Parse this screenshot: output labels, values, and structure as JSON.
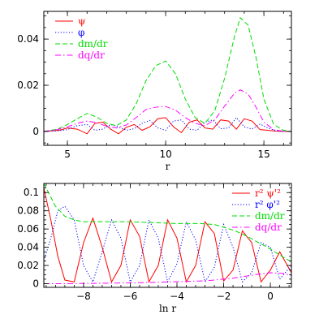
{
  "chart_data": [
    {
      "type": "line",
      "xlabel": "r",
      "ylabel": "",
      "xlim": [
        3.8,
        16.4
      ],
      "ylim": [
        -0.006,
        0.052
      ],
      "xticks": [
        5,
        10,
        15
      ],
      "yticks": [
        0,
        0.02,
        0.04
      ],
      "xtick_labels": [
        "5",
        "10",
        "15"
      ],
      "ytick_labels": [
        "0",
        "0.02",
        "0.04"
      ],
      "legend_position": "top-left",
      "series": [
        {
          "name": "ψ",
          "style": "solid",
          "color": "#ff0000",
          "x": [
            3.8,
            4.6,
            5.0,
            5.5,
            6.0,
            6.4,
            6.8,
            7.2,
            7.6,
            8.0,
            8.4,
            8.8,
            9.2,
            9.6,
            10.0,
            10.4,
            10.8,
            11.2,
            11.6,
            12.0,
            12.4,
            12.8,
            13.2,
            13.6,
            14.0,
            14.4,
            14.8,
            15.2,
            15.6,
            16.0,
            16.4
          ],
          "y": [
            0,
            0.0005,
            0.0015,
            0.001,
            -0.001,
            0.0035,
            0.004,
            0.001,
            -0.001,
            0.0018,
            0.003,
            0.0005,
            0.002,
            0.0055,
            0.006,
            0.002,
            -0.0005,
            0.004,
            0.005,
            0.0015,
            0.001,
            0.005,
            0.0045,
            0.001,
            0.0055,
            0.0045,
            0.0008,
            0.0005,
            0.0001,
            0,
            0
          ]
        },
        {
          "name": "φ",
          "style": "dotted",
          "color": "#0000ff",
          "x": [
            3.8,
            4.6,
            5.0,
            5.5,
            6.0,
            6.4,
            6.8,
            7.2,
            7.6,
            8.0,
            8.4,
            8.8,
            9.2,
            9.6,
            10.0,
            10.4,
            10.8,
            11.2,
            11.6,
            12.0,
            12.4,
            12.8,
            13.2,
            13.6,
            14.0,
            14.4,
            14.8,
            15.2,
            15.6,
            16.0,
            16.4
          ],
          "y": [
            0,
            0.0003,
            0.0008,
            0.0025,
            0.003,
            0.0005,
            0.001,
            0.003,
            0.002,
            0.0005,
            0.0012,
            0.0035,
            0.0048,
            0.0015,
            0.0005,
            0.0045,
            0.005,
            0.001,
            0.0005,
            0.004,
            0.005,
            0.0012,
            0.0015,
            0.006,
            0.002,
            0.001,
            0.0032,
            0.0015,
            0.0003,
            0,
            0
          ]
        },
        {
          "name": "dm/dr",
          "style": "dashed",
          "color": "#00dd00",
          "x": [
            3.8,
            4.5,
            5.0,
            5.5,
            6.0,
            6.5,
            7.0,
            7.5,
            8.0,
            8.5,
            9.0,
            9.5,
            10.0,
            10.5,
            11.0,
            11.5,
            12.0,
            12.5,
            13.0,
            13.5,
            13.8,
            14.2,
            14.6,
            15.0,
            15.5,
            16.0,
            16.4
          ],
          "y": [
            0,
            0.001,
            0.003,
            0.0055,
            0.0078,
            0.0062,
            0.0035,
            0.0025,
            0.005,
            0.012,
            0.022,
            0.0285,
            0.0305,
            0.025,
            0.014,
            0.006,
            0.0035,
            0.009,
            0.023,
            0.041,
            0.0492,
            0.046,
            0.032,
            0.014,
            0.003,
            0.0005,
            0
          ]
        },
        {
          "name": "dq/dr",
          "style": "dashdot",
          "color": "#ff00ff",
          "x": [
            3.8,
            4.5,
            5.0,
            5.5,
            6.0,
            6.5,
            7.0,
            7.5,
            8.0,
            8.5,
            9.0,
            9.5,
            10.0,
            10.5,
            11.0,
            11.5,
            12.0,
            12.5,
            13.0,
            13.5,
            13.8,
            14.2,
            14.6,
            15.0,
            15.5,
            16.0,
            16.4
          ],
          "y": [
            0,
            0.0008,
            0.002,
            0.0035,
            0.0045,
            0.0038,
            0.0022,
            0.0015,
            0.0028,
            0.006,
            0.0095,
            0.0105,
            0.0108,
            0.0092,
            0.006,
            0.0035,
            0.0025,
            0.005,
            0.011,
            0.0165,
            0.018,
            0.0162,
            0.0105,
            0.004,
            0.0008,
            0.0001,
            0
          ]
        }
      ]
    },
    {
      "type": "line",
      "xlabel": "ln r",
      "ylabel": "",
      "xlim": [
        -9.7,
        0.9
      ],
      "ylim": [
        -0.004,
        0.11
      ],
      "xticks": [
        -8,
        -6,
        -4,
        -2,
        0
      ],
      "yticks": [
        0,
        0.02,
        0.04,
        0.06,
        0.08,
        0.1
      ],
      "xtick_labels": [
        "−8",
        "−6",
        "−4",
        "−2",
        "0"
      ],
      "ytick_labels": [
        "0",
        "0.02",
        "0.04",
        "0.06",
        "0.08",
        "0.1"
      ],
      "legend_position": "top-right",
      "series": [
        {
          "name": "r² ψ'²",
          "style": "solid",
          "color": "#ff0000",
          "x": [
            -9.7,
            -9.4,
            -9.1,
            -8.8,
            -8.4,
            -8.0,
            -7.6,
            -7.2,
            -6.8,
            -6.4,
            -6.0,
            -5.6,
            -5.2,
            -4.8,
            -4.4,
            -4.0,
            -3.6,
            -3.2,
            -2.8,
            -2.4,
            -2.0,
            -1.6,
            -1.2,
            -0.8,
            -0.4,
            0.0,
            0.4,
            0.9
          ],
          "y": [
            0.105,
            0.07,
            0.03,
            0.004,
            0.002,
            0.045,
            0.072,
            0.04,
            0.002,
            0.02,
            0.07,
            0.052,
            0.002,
            0.02,
            0.07,
            0.05,
            0.002,
            0.02,
            0.068,
            0.055,
            0.003,
            0.015,
            0.058,
            0.045,
            0.002,
            0.015,
            0.035,
            0.012
          ]
        },
        {
          "name": "r² φ'²",
          "style": "dotted",
          "color": "#0000ff",
          "x": [
            -9.7,
            -9.4,
            -9.1,
            -8.8,
            -8.4,
            -8.0,
            -7.6,
            -7.2,
            -6.8,
            -6.4,
            -6.0,
            -5.6,
            -5.2,
            -4.8,
            -4.4,
            -4.0,
            -3.6,
            -3.2,
            -2.8,
            -2.4,
            -2.0,
            -1.6,
            -1.2,
            -0.8,
            -0.4,
            0.0,
            0.4,
            0.9
          ],
          "y": [
            0.025,
            0.05,
            0.08,
            0.085,
            0.07,
            0.02,
            0.002,
            0.035,
            0.07,
            0.05,
            0.002,
            0.02,
            0.07,
            0.05,
            0.002,
            0.022,
            0.068,
            0.048,
            0.002,
            0.018,
            0.065,
            0.04,
            0.002,
            0.012,
            0.045,
            0.04,
            0.005,
            0.02
          ]
        },
        {
          "name": "dm/dr",
          "style": "dashed",
          "color": "#00dd00",
          "x": [
            -9.7,
            -9.2,
            -8.8,
            -8.4,
            -8.0,
            -7.0,
            -6.0,
            -5.0,
            -4.0,
            -3.0,
            -2.4,
            -2.0,
            -1.5,
            -1.0,
            -0.5,
            0.0,
            0.5,
            0.9
          ],
          "y": [
            0.11,
            0.085,
            0.074,
            0.07,
            0.068,
            0.068,
            0.068,
            0.067,
            0.066,
            0.066,
            0.065,
            0.062,
            0.058,
            0.052,
            0.045,
            0.038,
            0.03,
            0.024
          ]
        },
        {
          "name": "dq/dr",
          "style": "dashdot",
          "color": "#ff00ff",
          "x": [
            -9.7,
            -9.0,
            -8.0,
            -7.0,
            -6.0,
            -5.0,
            -4.0,
            -3.0,
            -2.5,
            -2.0,
            -1.5,
            -1.0,
            -0.5,
            0.0,
            0.5,
            0.9
          ],
          "y": [
            0.0,
            0.0,
            0.0003,
            0.0006,
            0.001,
            0.0015,
            0.0022,
            0.003,
            0.0038,
            0.005,
            0.0065,
            0.0085,
            0.0105,
            0.012,
            0.0115,
            0.009
          ]
        }
      ]
    }
  ]
}
